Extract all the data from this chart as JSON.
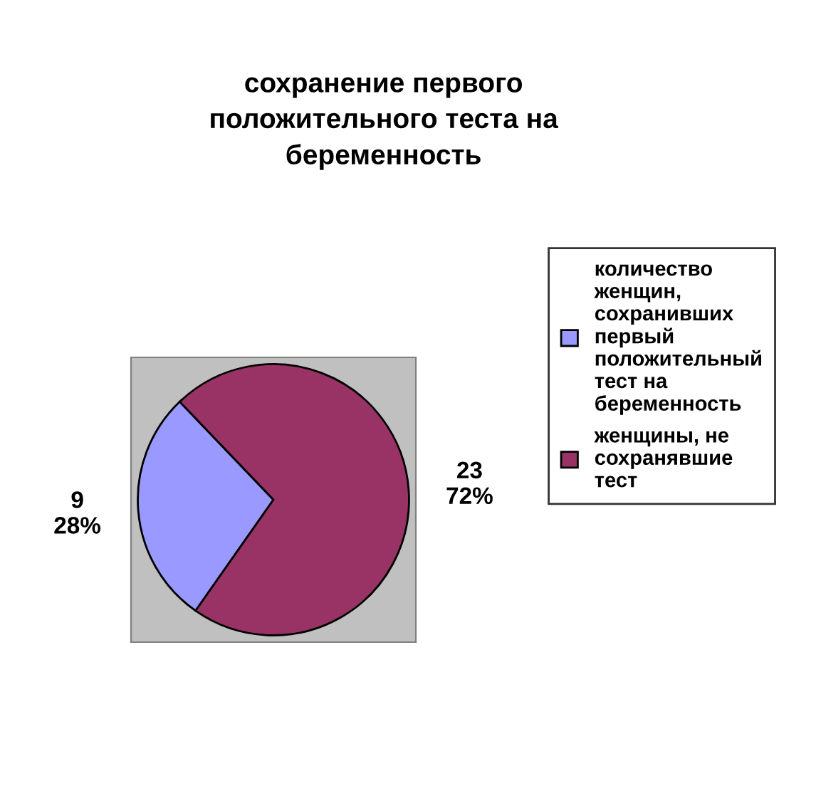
{
  "chart_data": {
    "type": "pie",
    "title": "сохранение первого положительного теста на беременность",
    "categories": [
      "количество женщин, сохранивших первый положительный тест на беременность",
      "женщины, не сохранявшие тест"
    ],
    "values": [
      9,
      23
    ],
    "colors": [
      "#9999ff",
      "#993366"
    ],
    "value_labels": [
      "9\n28%",
      "23\n72%"
    ],
    "legend": "right"
  }
}
